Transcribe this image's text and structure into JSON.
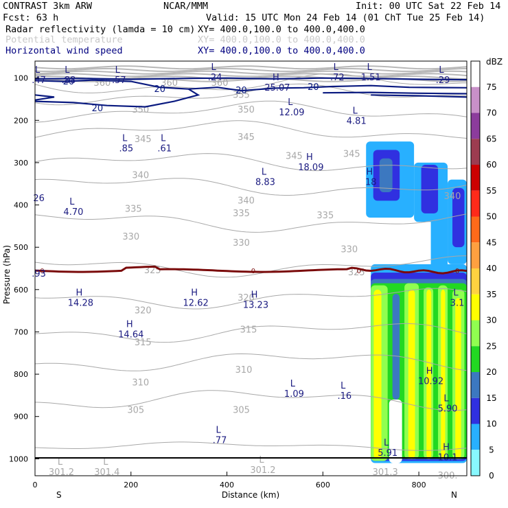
{
  "header": {
    "model": "CONTRAST  3km ARW",
    "source": "NCAR/MMM",
    "init": "Init: 00 UTC Sat 22 Feb 14",
    "fcst": "Fcst:   63 h",
    "valid": "Valid: 15 UTC Mon 24 Feb 14 (01 ChT Tue 25 Feb 14)"
  },
  "fields": [
    {
      "label": "Radar reflectivity (lamda = 10 cm)",
      "xy": "XY= 400.0,100.0 to 400.0,400.0",
      "color": "#000000"
    },
    {
      "label": "Potential temperature",
      "xy": "XY= 400.0,100.0 to 400.0,400.0",
      "color": "#c8c8c8"
    },
    {
      "label": "Horizontal wind speed",
      "xy": "XY= 400.0,100.0 to 400.0,400.0",
      "color": "#000080"
    }
  ],
  "colors": {
    "theta": "#a8a8a8",
    "wind": "#0a1a80",
    "freezing": "#7a0a0a",
    "marker": "#1a1a80",
    "marker_low": "#a8a8a8"
  },
  "chart_data": {
    "type": "cross-section",
    "xlabel": "Distance (km)",
    "ylabel": "Pressure (hPa)",
    "xlim": [
      0,
      900
    ],
    "ylim": [
      1040,
      60
    ],
    "x_ticks": [
      0,
      200,
      400,
      600,
      800
    ],
    "y_ticks": [
      100,
      200,
      300,
      400,
      500,
      600,
      700,
      800,
      900,
      1000
    ],
    "x_end_labels": {
      "left": "S",
      "right": "N"
    },
    "colorbar": {
      "unit": "dBZ",
      "levels": [
        75,
        70,
        65,
        60,
        55,
        50,
        45,
        40,
        35,
        30,
        25,
        20,
        15,
        10,
        5,
        0
      ],
      "colors": [
        "#ffffff",
        "#c890c8",
        "#8c3c9c",
        "#9c3c50",
        "#cc0000",
        "#ff2a1a",
        "#ff6a1a",
        "#ffa040",
        "#ffd240",
        "#ffff00",
        "#90ff50",
        "#22d822",
        "#3c78c0",
        "#3030e0",
        "#28b0ff",
        "#88f8ff"
      ]
    },
    "theta_contours": [
      {
        "value": 360,
        "p": 115
      },
      {
        "value": 355,
        "p": 140
      },
      {
        "value": 350,
        "p": 180
      },
      {
        "value": 345,
        "p": 225
      },
      {
        "value": 340,
        "p": 300
      },
      {
        "value": 335,
        "p": 355
      },
      {
        "value": 330,
        "p": 440
      },
      {
        "value": 325,
        "p": 545
      },
      {
        "value": 320,
        "p": 620
      },
      {
        "value": 315,
        "p": 700
      },
      {
        "value": 310,
        "p": 770
      },
      {
        "value": 305,
        "p": 860
      },
      {
        "value": 300,
        "p": 970
      }
    ],
    "theta_labels": [
      {
        "text": "360",
        "x": 140,
        "p": 112
      },
      {
        "text": "360",
        "x": 280,
        "p": 112
      },
      {
        "text": "360",
        "x": 385,
        "p": 112
      },
      {
        "text": "355",
        "x": 430,
        "p": 140
      },
      {
        "text": "350",
        "x": 220,
        "p": 175
      },
      {
        "text": "350",
        "x": 440,
        "p": 175
      },
      {
        "text": "345",
        "x": 225,
        "p": 245
      },
      {
        "text": "345",
        "x": 440,
        "p": 240
      },
      {
        "text": "345",
        "x": 540,
        "p": 285
      },
      {
        "text": "345",
        "x": 660,
        "p": 280
      },
      {
        "text": "340",
        "x": 220,
        "p": 330
      },
      {
        "text": "340",
        "x": 440,
        "p": 390
      },
      {
        "text": "340",
        "x": 870,
        "p": 380
      },
      {
        "text": "335",
        "x": 205,
        "p": 410
      },
      {
        "text": "335",
        "x": 430,
        "p": 420
      },
      {
        "text": "335",
        "x": 605,
        "p": 425
      },
      {
        "text": "330",
        "x": 200,
        "p": 475
      },
      {
        "text": "330",
        "x": 430,
        "p": 490
      },
      {
        "text": "330",
        "x": 655,
        "p": 505
      },
      {
        "text": "325",
        "x": 245,
        "p": 555
      },
      {
        "text": "325",
        "x": 670,
        "p": 560
      },
      {
        "text": "320",
        "x": 225,
        "p": 650
      },
      {
        "text": "320",
        "x": 440,
        "p": 620
      },
      {
        "text": "315",
        "x": 225,
        "p": 725
      },
      {
        "text": "315",
        "x": 445,
        "p": 695
      },
      {
        "text": "310",
        "x": 220,
        "p": 820
      },
      {
        "text": "310",
        "x": 435,
        "p": 790
      },
      {
        "text": "305",
        "x": 210,
        "p": 885
      },
      {
        "text": "305",
        "x": 430,
        "p": 885
      }
    ],
    "wind_contours": [
      {
        "value": 20,
        "label_points": [
          [
            70,
            107
          ],
          [
            260,
            125
          ],
          [
            430,
            128
          ],
          [
            580,
            120
          ]
        ]
      },
      {
        "value": 20,
        "label_points": [
          [
            130,
            170
          ]
        ]
      }
    ],
    "freezing_level": {
      "label": "0",
      "p_mean": 555
    },
    "max_min_markers": [
      {
        "letter": "L",
        "value": ".47",
        "x": 8,
        "p": 104
      },
      {
        "letter": "L",
        "value": ".88",
        "x": 70,
        "p": 104
      },
      {
        "letter": "L",
        "value": ".57",
        "x": 175,
        "p": 104
      },
      {
        "letter": "L",
        "value": ".24",
        "x": 375,
        "p": 97
      },
      {
        "letter": "H",
        "value": "25.07",
        "x": 505,
        "p": 122
      },
      {
        "letter": "L",
        "value": ".72",
        "x": 630,
        "p": 97
      },
      {
        "letter": "L",
        "value": "1.51",
        "x": 700,
        "p": 97
      },
      {
        "letter": "L",
        "value": ".29",
        "x": 850,
        "p": 104
      },
      {
        "letter": "L",
        "value": "12.09",
        "x": 535,
        "p": 180
      },
      {
        "letter": "L",
        "value": "4.81",
        "x": 670,
        "p": 200
      },
      {
        "letter": "L",
        "value": ".85",
        "x": 190,
        "p": 265
      },
      {
        "letter": "L",
        "value": ".61",
        "x": 270,
        "p": 265
      },
      {
        "letter": "H",
        "value": "18.09",
        "x": 575,
        "p": 310
      },
      {
        "letter": "L",
        "value": "8.83",
        "x": 480,
        "p": 345
      },
      {
        "letter": "H",
        "value": "18",
        "x": 700,
        "p": 345
      },
      {
        "letter": "",
        "value": "26",
        "x": 8,
        "p": 383
      },
      {
        "letter": "L",
        "value": "4.70",
        "x": 80,
        "p": 415
      },
      {
        "letter": "",
        "value": ".93",
        "x": 8,
        "p": 561
      },
      {
        "letter": "H",
        "value": "14.28",
        "x": 95,
        "p": 630
      },
      {
        "letter": "H",
        "value": "12.62",
        "x": 335,
        "p": 630
      },
      {
        "letter": "H",
        "value": "13.23",
        "x": 460,
        "p": 635
      },
      {
        "letter": "L",
        "value": "3.1",
        "x": 880,
        "p": 630
      },
      {
        "letter": "H",
        "value": "14.64",
        "x": 200,
        "p": 705
      },
      {
        "letter": "H",
        "value": "10.92",
        "x": 825,
        "p": 815
      },
      {
        "letter": "L",
        "value": "1.09",
        "x": 540,
        "p": 845
      },
      {
        "letter": "L",
        "value": ".16",
        "x": 645,
        "p": 850
      },
      {
        "letter": "L",
        "value": "5.90",
        "x": 860,
        "p": 880
      },
      {
        "letter": "L",
        "value": ".77",
        "x": 385,
        "p": 955
      },
      {
        "letter": "L",
        "value": "5.91",
        "x": 735,
        "p": 985
      },
      {
        "letter": "H",
        "value": "10.1",
        "x": 860,
        "p": 995
      },
      {
        "letter": "L",
        "value": "301.2",
        "x": 55,
        "p": 1030
      },
      {
        "letter": "L",
        "value": "301.4",
        "x": 150,
        "p": 1030
      },
      {
        "letter": "L",
        "value": "301.2",
        "x": 475,
        "p": 1025
      },
      {
        "letter": "",
        "value": "301.3",
        "x": 730,
        "p": 1030
      },
      {
        "letter": "",
        "value": "300.",
        "x": 860,
        "p": 1038
      }
    ]
  }
}
